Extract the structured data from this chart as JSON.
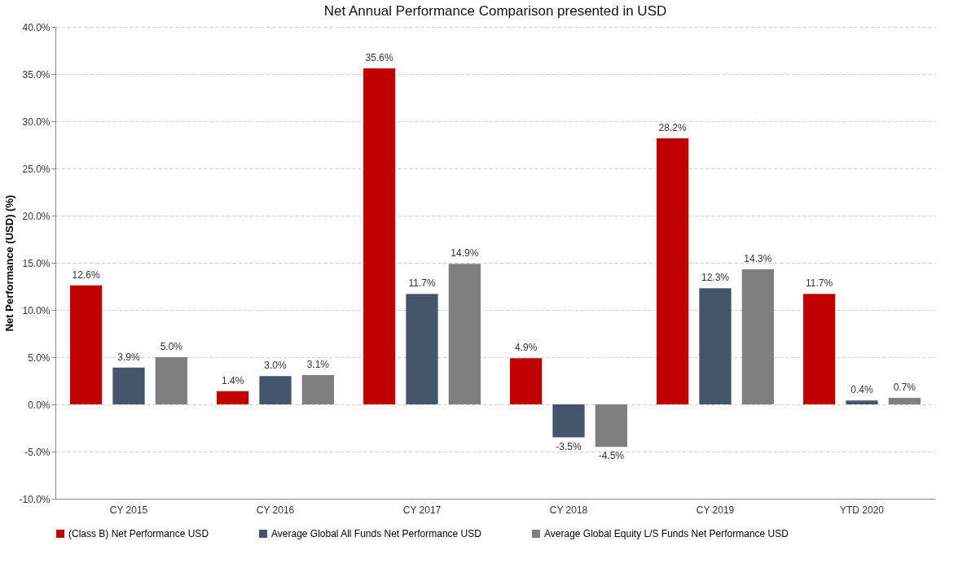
{
  "chart_data": {
    "type": "bar",
    "title": "Net Annual Performance Comparison presented in USD",
    "ylabel": "Net Performance (USD) (%)",
    "categories": [
      "CY 2015",
      "CY 2016",
      "CY 2017",
      "CY 2018",
      "CY 2019",
      "YTD 2020"
    ],
    "series": [
      {
        "name": "(Class B) Net Performance USD",
        "color": "#c00000",
        "values": [
          12.6,
          1.4,
          35.6,
          4.9,
          28.2,
          11.7
        ],
        "value_labels": [
          "12.6%",
          "1.4%",
          "35.6%",
          "4.9%",
          "28.2%",
          "11.7%"
        ]
      },
      {
        "name": "Average Global All Funds Net Performance USD",
        "color": "#44546a",
        "values": [
          3.9,
          3.0,
          11.7,
          -3.5,
          12.3,
          0.4
        ],
        "value_labels": [
          "3.9%",
          "3.0%",
          "11.7%",
          "-3.5%",
          "12.3%",
          "0.4%"
        ]
      },
      {
        "name": "Average Global Equity L/S Funds Net Performance USD",
        "color": "#7f7f7f",
        "values": [
          5.0,
          3.1,
          14.9,
          -4.5,
          14.3,
          0.7
        ],
        "value_labels": [
          "5.0%",
          "3.1%",
          "14.9%",
          "-4.5%",
          "14.3%",
          "0.7%"
        ]
      }
    ],
    "ylim": [
      -10,
      40
    ],
    "yticks": [
      {
        "value": -10,
        "label": "-10.0%"
      },
      {
        "value": -5,
        "label": "-5.0%"
      },
      {
        "value": 0,
        "label": "0.0%"
      },
      {
        "value": 5,
        "label": "5.0%"
      },
      {
        "value": 10,
        "label": "10.0%"
      },
      {
        "value": 15,
        "label": "15.0%"
      },
      {
        "value": 20,
        "label": "20.0%"
      },
      {
        "value": 25,
        "label": "25.0%"
      },
      {
        "value": 30,
        "label": "30.0%"
      },
      {
        "value": 35,
        "label": "35.0%"
      },
      {
        "value": 40,
        "label": "40.0%"
      }
    ],
    "grid": "y",
    "legend": "bottom"
  }
}
